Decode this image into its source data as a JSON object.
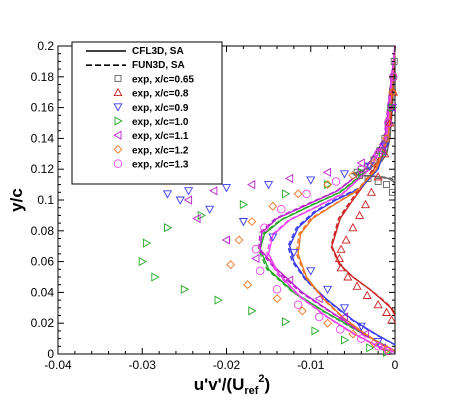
{
  "chart_data": {
    "type": "line",
    "title": "",
    "xlabel": "u'v'/(U",
    "xlabel_sub": "ref",
    "xlabel_sup": "2",
    "xlabel_tail": ")",
    "ylabel": "y/c",
    "xlim": [
      -0.04,
      0.0
    ],
    "ylim": [
      0.0,
      0.2
    ],
    "xticks": [
      "-0.04",
      "-0.03",
      "-0.02",
      "-0.01",
      "0"
    ],
    "yticks": [
      "0",
      "0.02",
      "0.04",
      "0.06",
      "0.08",
      "0.1",
      "0.12",
      "0.14",
      "0.16",
      "0.18",
      "0.2"
    ],
    "grid": false,
    "legend_position": "top-left",
    "legend": [
      {
        "label": "CFL3D, SA",
        "kind": "solid"
      },
      {
        "label": "FUN3D, SA",
        "kind": "dashed"
      },
      {
        "label": "exp, x/c=0.65",
        "kind": "marker",
        "color": "#606060",
        "marker": "square"
      },
      {
        "label": "exp, x/c=0.8",
        "kind": "marker",
        "color": "#cc2222",
        "marker": "triangle-up"
      },
      {
        "label": "exp, x/c=0.9",
        "kind": "marker",
        "color": "#3a3aee",
        "marker": "triangle-down"
      },
      {
        "label": "exp, x/c=1.0",
        "kind": "marker",
        "color": "#22aa22",
        "marker": "triangle-right"
      },
      {
        "label": "exp, x/c=1.1",
        "kind": "marker",
        "color": "#bb22cc",
        "marker": "triangle-left"
      },
      {
        "label": "exp, x/c=1.2",
        "kind": "marker",
        "color": "#ee7722",
        "marker": "diamond"
      },
      {
        "label": "exp, x/c=1.3",
        "kind": "marker",
        "color": "#ee44ee",
        "marker": "circle"
      }
    ],
    "series": [
      {
        "color": "#606060",
        "style": "solid",
        "x": [
          0,
          -0.0003,
          -0.0006,
          -0.001,
          -0.0016,
          -0.0025,
          -0.004,
          -0.005,
          -0.004,
          -0.002,
          -0.0008,
          -0.0002,
          0
        ],
        "y": [
          0.2,
          0.16,
          0.14,
          0.13,
          0.125,
          0.122,
          0.119,
          0.117,
          0.116,
          0.115,
          0.114,
          0.112,
          0.11
        ]
      },
      {
        "color": "#606060",
        "style": "dashed",
        "x": [
          0,
          -0.0004,
          -0.0007,
          -0.0012,
          -0.002,
          -0.003,
          -0.0045,
          -0.005,
          -0.0035,
          -0.0015,
          -0.0004,
          0
        ],
        "y": [
          0.2,
          0.16,
          0.14,
          0.13,
          0.124,
          0.121,
          0.118,
          0.117,
          0.116,
          0.115,
          0.114,
          0.112
        ]
      },
      {
        "color": "#cc2222",
        "style": "solid",
        "x": [
          0,
          -0.0005,
          -0.0015,
          -0.003,
          -0.005,
          -0.0065,
          -0.0075,
          -0.0065,
          -0.005,
          -0.003,
          -0.0015,
          -0.0005,
          0
        ],
        "y": [
          0.2,
          0.15,
          0.13,
          0.115,
          0.1,
          0.088,
          0.07,
          0.058,
          0.05,
          0.042,
          0.035,
          0.03,
          0.025
        ]
      },
      {
        "color": "#cc2222",
        "style": "dashed",
        "x": [
          0,
          -0.0005,
          -0.0016,
          -0.0032,
          -0.0052,
          -0.0067,
          -0.0076,
          -0.0066,
          -0.005,
          -0.003,
          -0.0014,
          -0.0004,
          0
        ],
        "y": [
          0.2,
          0.15,
          0.13,
          0.115,
          0.1,
          0.088,
          0.07,
          0.058,
          0.05,
          0.042,
          0.035,
          0.03,
          0.026
        ]
      },
      {
        "color": "#3a3aee",
        "style": "solid",
        "x": [
          0,
          -0.0008,
          -0.002,
          -0.004,
          -0.007,
          -0.0095,
          -0.0115,
          -0.0125,
          -0.012,
          -0.0105,
          -0.008,
          -0.005,
          -0.002,
          0
        ],
        "y": [
          0.2,
          0.14,
          0.12,
          0.108,
          0.1,
          0.092,
          0.082,
          0.07,
          0.06,
          0.048,
          0.035,
          0.022,
          0.012,
          0.006
        ]
      },
      {
        "color": "#3a3aee",
        "style": "dashed",
        "x": [
          0,
          -0.0009,
          -0.0022,
          -0.0042,
          -0.0072,
          -0.0097,
          -0.0117,
          -0.0127,
          -0.0122,
          -0.0106,
          -0.0081,
          -0.0051,
          -0.0021,
          0
        ],
        "y": [
          0.2,
          0.14,
          0.12,
          0.108,
          0.1,
          0.092,
          0.082,
          0.07,
          0.06,
          0.048,
          0.035,
          0.022,
          0.012,
          0.006
        ]
      },
      {
        "color": "#22aa22",
        "style": "solid",
        "x": [
          0,
          -0.001,
          -0.003,
          -0.0065,
          -0.0105,
          -0.0135,
          -0.0155,
          -0.016,
          -0.015,
          -0.012,
          -0.0085,
          -0.005,
          -0.002,
          0
        ],
        "y": [
          0.2,
          0.14,
          0.12,
          0.105,
          0.095,
          0.087,
          0.078,
          0.068,
          0.055,
          0.04,
          0.028,
          0.017,
          0.008,
          0.002
        ]
      },
      {
        "color": "#22aa22",
        "style": "dashed",
        "x": [
          0,
          -0.0011,
          -0.0031,
          -0.0066,
          -0.0106,
          -0.0136,
          -0.0157,
          -0.0162,
          -0.0152,
          -0.0121,
          -0.0086,
          -0.0051,
          -0.0021,
          0
        ],
        "y": [
          0.2,
          0.14,
          0.12,
          0.105,
          0.095,
          0.087,
          0.078,
          0.068,
          0.055,
          0.04,
          0.028,
          0.017,
          0.008,
          0.002
        ]
      },
      {
        "color": "#bb22cc",
        "style": "solid",
        "x": [
          0,
          -0.0012,
          -0.0035,
          -0.0068,
          -0.0108,
          -0.014,
          -0.0158,
          -0.016,
          -0.014,
          -0.011,
          -0.0075,
          -0.0045,
          -0.0018,
          0
        ],
        "y": [
          0.2,
          0.14,
          0.12,
          0.106,
          0.096,
          0.088,
          0.079,
          0.068,
          0.055,
          0.04,
          0.027,
          0.016,
          0.007,
          0.002
        ]
      },
      {
        "color": "#bb22cc",
        "style": "dashed",
        "x": [
          0,
          -0.0013,
          -0.0036,
          -0.0069,
          -0.011,
          -0.0142,
          -0.016,
          -0.0162,
          -0.0142,
          -0.0112,
          -0.0076,
          -0.0046,
          -0.0019,
          0
        ],
        "y": [
          0.2,
          0.14,
          0.12,
          0.106,
          0.096,
          0.088,
          0.079,
          0.068,
          0.055,
          0.04,
          0.027,
          0.016,
          0.007,
          0.002
        ]
      },
      {
        "color": "#ee7722",
        "style": "solid",
        "x": [
          0,
          -0.0008,
          -0.0022,
          -0.0045,
          -0.0075,
          -0.0098,
          -0.0112,
          -0.0115,
          -0.0105,
          -0.0085,
          -0.006,
          -0.0035,
          -0.0015,
          0
        ],
        "y": [
          0.2,
          0.14,
          0.12,
          0.106,
          0.096,
          0.088,
          0.078,
          0.065,
          0.05,
          0.036,
          0.023,
          0.013,
          0.006,
          0.002
        ]
      },
      {
        "color": "#ee7722",
        "style": "dashed",
        "x": [
          0,
          -0.0009,
          -0.0023,
          -0.0046,
          -0.0076,
          -0.01,
          -0.0114,
          -0.0117,
          -0.0106,
          -0.0086,
          -0.0061,
          -0.0036,
          -0.0016,
          0
        ],
        "y": [
          0.2,
          0.14,
          0.12,
          0.106,
          0.096,
          0.088,
          0.078,
          0.065,
          0.05,
          0.036,
          0.023,
          0.013,
          0.006,
          0.002
        ]
      },
      {
        "color": "#ee44ee",
        "style": "solid",
        "x": [
          0,
          -0.001,
          -0.003,
          -0.0062,
          -0.0095,
          -0.0125,
          -0.0145,
          -0.015,
          -0.0138,
          -0.0112,
          -0.008,
          -0.0048,
          -0.002,
          0
        ],
        "y": [
          0.2,
          0.14,
          0.12,
          0.104,
          0.095,
          0.087,
          0.077,
          0.065,
          0.052,
          0.037,
          0.024,
          0.013,
          0.005,
          0.001
        ]
      },
      {
        "color": "#ee44ee",
        "style": "dashed",
        "x": [
          0,
          -0.0011,
          -0.0031,
          -0.0063,
          -0.0096,
          -0.0126,
          -0.0147,
          -0.0152,
          -0.014,
          -0.0113,
          -0.0081,
          -0.0049,
          -0.0021,
          0
        ],
        "y": [
          0.2,
          0.14,
          0.12,
          0.104,
          0.095,
          0.087,
          0.077,
          0.065,
          0.052,
          0.037,
          0.024,
          0.013,
          0.005,
          0.001
        ]
      }
    ],
    "scatter": [
      {
        "marker": "square",
        "color": "#606060",
        "x": [
          -0.0001,
          -0.0002,
          -0.0003,
          -0.0005,
          -0.0008,
          -0.0012,
          -0.0018,
          -0.0025,
          -0.0032,
          -0.004,
          -0.0045,
          -0.0042,
          -0.0032,
          -0.002,
          -0.001,
          -0.0003
        ],
        "y": [
          0.19,
          0.18,
          0.17,
          0.16,
          0.15,
          0.14,
          0.132,
          0.126,
          0.122,
          0.12,
          0.118,
          0.116,
          0.114,
          0.112,
          0.11,
          0.105
        ]
      },
      {
        "marker": "triangle-up",
        "color": "#cc2222",
        "x": [
          -0.0002,
          -0.0006,
          -0.0012,
          -0.002,
          -0.0028,
          -0.0035,
          -0.0042,
          -0.005,
          -0.0058,
          -0.0064,
          -0.0066,
          -0.0064,
          -0.0056,
          -0.0045,
          -0.0033,
          -0.002,
          -0.001,
          -0.0004
        ],
        "y": [
          0.17,
          0.15,
          0.13,
          0.115,
          0.105,
          0.097,
          0.09,
          0.082,
          0.074,
          0.068,
          0.062,
          0.056,
          0.05,
          0.044,
          0.038,
          0.032,
          0.027,
          0.022
        ]
      },
      {
        "marker": "triangle-down",
        "color": "#3a3aee",
        "x": [
          -0.0003,
          -0.0012,
          -0.003,
          -0.006,
          -0.01,
          -0.015,
          -0.02,
          -0.0245,
          -0.027,
          -0.0255,
          -0.022,
          -0.018,
          -0.0145,
          -0.012,
          -0.01,
          -0.008,
          -0.006,
          -0.004,
          -0.002
        ],
        "y": [
          0.16,
          0.135,
          0.122,
          0.117,
          0.113,
          0.11,
          0.108,
          0.106,
          0.104,
          0.1,
          0.094,
          0.086,
          0.076,
          0.066,
          0.054,
          0.042,
          0.03,
          0.018,
          0.008
        ]
      },
      {
        "marker": "triangle-right",
        "color": "#22aa22",
        "x": [
          -0.0003,
          -0.0015,
          -0.004,
          -0.008,
          -0.013,
          -0.018,
          -0.023,
          -0.027,
          -0.0295,
          -0.03,
          -0.0285,
          -0.025,
          -0.021,
          -0.017,
          -0.013,
          -0.0095,
          -0.006,
          -0.003,
          -0.001
        ],
        "y": [
          0.16,
          0.13,
          0.118,
          0.11,
          0.104,
          0.097,
          0.09,
          0.082,
          0.072,
          0.06,
          0.05,
          0.042,
          0.035,
          0.028,
          0.021,
          0.015,
          0.009,
          0.004,
          0.001
        ]
      },
      {
        "marker": "triangle-left",
        "color": "#bb22cc",
        "x": [
          -0.0003,
          -0.0015,
          -0.004,
          -0.008,
          -0.0125,
          -0.017,
          -0.0215,
          -0.0245,
          -0.0235,
          -0.02,
          -0.0165,
          -0.0125,
          -0.009,
          -0.006,
          -0.0035,
          -0.0015
        ],
        "y": [
          0.16,
          0.132,
          0.124,
          0.118,
          0.114,
          0.11,
          0.106,
          0.1,
          0.088,
          0.074,
          0.062,
          0.048,
          0.036,
          0.024,
          0.013,
          0.004
        ]
      },
      {
        "marker": "diamond",
        "color": "#ee7722",
        "x": [
          -0.0003,
          -0.001,
          -0.0025,
          -0.005,
          -0.008,
          -0.0115,
          -0.0145,
          -0.017,
          -0.0185,
          -0.0195,
          -0.0175,
          -0.014,
          -0.011,
          -0.008,
          -0.005,
          -0.0025,
          -0.001
        ],
        "y": [
          0.17,
          0.14,
          0.124,
          0.116,
          0.11,
          0.104,
          0.096,
          0.086,
          0.074,
          0.058,
          0.045,
          0.036,
          0.028,
          0.02,
          0.013,
          0.007,
          0.003
        ]
      },
      {
        "marker": "circle",
        "color": "#ee44ee",
        "x": [
          -0.0002,
          -0.0008,
          -0.002,
          -0.004,
          -0.007,
          -0.0105,
          -0.0135,
          -0.0155,
          -0.0165,
          -0.016,
          -0.014,
          -0.0115,
          -0.009,
          -0.0065,
          -0.004,
          -0.002,
          -0.0008
        ],
        "y": [
          0.18,
          0.15,
          0.13,
          0.12,
          0.112,
          0.104,
          0.094,
          0.082,
          0.068,
          0.054,
          0.042,
          0.032,
          0.024,
          0.016,
          0.01,
          0.005,
          0.002
        ]
      }
    ]
  }
}
